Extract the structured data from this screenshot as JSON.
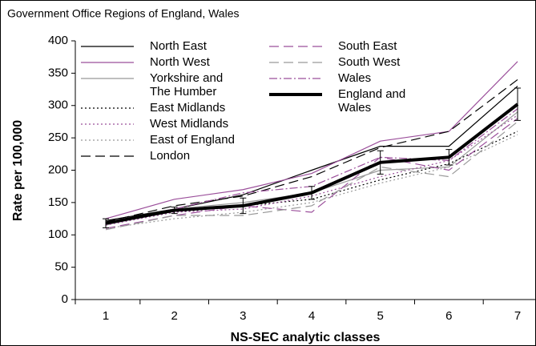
{
  "chart_data": {
    "type": "line",
    "title": "Government Office Regions of England, Wales",
    "x_label": "NS-SEC analytic classes",
    "y_label": "Rate per 100,000",
    "categories": [
      "1",
      "2",
      "3",
      "4",
      "5",
      "6",
      "7"
    ],
    "ylim": [
      0,
      400
    ],
    "yticks": [
      0,
      50,
      100,
      150,
      200,
      250,
      300,
      350,
      400
    ],
    "series": [
      {
        "name": "North East",
        "color": "#000000",
        "dash": "solid",
        "width": 1.2,
        "values": [
          122,
          140,
          162,
          200,
          237,
          237,
          330
        ]
      },
      {
        "name": "North West",
        "color": "#9b4f9b",
        "dash": "solid",
        "width": 1.2,
        "values": [
          125,
          155,
          170,
          195,
          245,
          260,
          368
        ]
      },
      {
        "name": "Yorkshire and The Humber",
        "color": "#999999",
        "dash": "solid",
        "width": 1.2,
        "values": [
          115,
          140,
          150,
          165,
          200,
          205,
          290
        ]
      },
      {
        "name": "East Midlands",
        "color": "#000000",
        "dash": "dotted",
        "width": 1.2,
        "values": [
          118,
          135,
          145,
          155,
          185,
          210,
          260
        ]
      },
      {
        "name": "West Midlands",
        "color": "#9b4f9b",
        "dash": "dotted",
        "width": 1.2,
        "values": [
          115,
          135,
          140,
          160,
          190,
          215,
          285
        ]
      },
      {
        "name": "East of England",
        "color": "#999999",
        "dash": "dotted",
        "width": 1.2,
        "values": [
          110,
          125,
          135,
          150,
          180,
          205,
          255
        ]
      },
      {
        "name": "London",
        "color": "#000000",
        "dash": "dashed",
        "width": 1.2,
        "values": [
          120,
          145,
          160,
          190,
          235,
          260,
          340
        ]
      },
      {
        "name": "South East",
        "color": "#9b4f9b",
        "dash": "dashed",
        "width": 1.2,
        "values": [
          110,
          130,
          145,
          135,
          220,
          200,
          280
        ]
      },
      {
        "name": "South West",
        "color": "#999999",
        "dash": "dashed",
        "width": 1.2,
        "values": [
          108,
          130,
          130,
          145,
          205,
          190,
          275
        ]
      },
      {
        "name": "Wales",
        "color": "#9b4f9b",
        "dash": "dashdot",
        "width": 1.2,
        "values": [
          118,
          140,
          165,
          175,
          220,
          215,
          295
        ]
      },
      {
        "name": "England and Wales",
        "color": "#000000",
        "dash": "solid",
        "width": 4,
        "values": [
          118,
          138,
          145,
          165,
          212,
          220,
          302
        ],
        "errors": [
          7,
          5,
          12,
          10,
          18,
          12,
          25
        ]
      }
    ]
  }
}
